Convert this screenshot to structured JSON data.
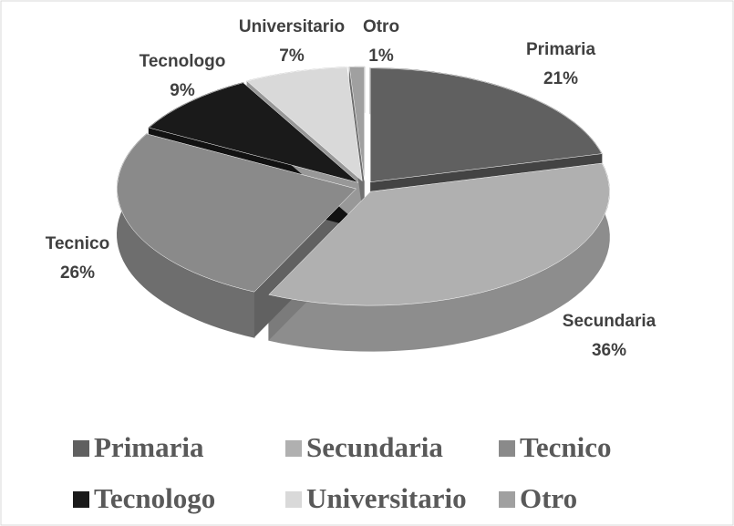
{
  "chart_data": {
    "type": "pie",
    "categories": [
      "Primaria",
      "Secundaria",
      "Tecnico",
      "Tecnologo",
      "Universitario",
      "Otro"
    ],
    "values": [
      21,
      36,
      26,
      9,
      7,
      1
    ],
    "value_labels": [
      "21%",
      "36%",
      "26%",
      "9%",
      "7%",
      "1%"
    ],
    "colors": [
      "#606060",
      "#b0b0b0",
      "#8a8a8a",
      "#1a1a1a",
      "#d9d9d9",
      "#a0a0a0"
    ],
    "legend": "bottom"
  }
}
